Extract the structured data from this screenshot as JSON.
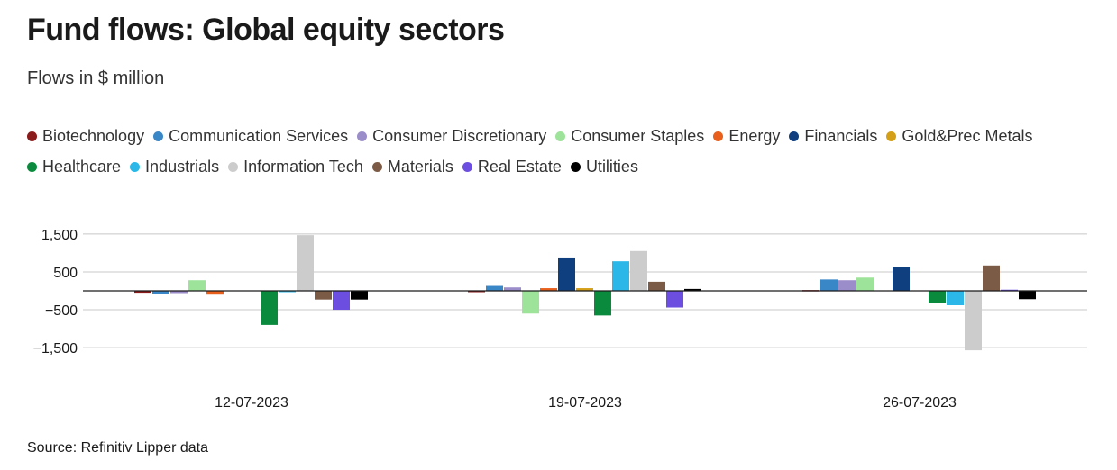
{
  "title": "Fund flows: Global equity sectors",
  "subtitle": "Flows in $ million",
  "source": "Source: Refinitiv Lipper data",
  "chart_data": {
    "type": "bar",
    "categories": [
      "12-07-2023",
      "19-07-2023",
      "26-07-2023"
    ],
    "ylim": [
      -1900,
      1750
    ],
    "yticks": [
      1500,
      500,
      -500,
      -1500
    ],
    "ytick_labels": [
      "1,500",
      "500",
      "−500",
      "−1,500"
    ],
    "legend_placement": "top",
    "series": [
      {
        "name": "Biotechnology",
        "color": "#8b1a1a",
        "values": [
          -50,
          -30,
          20
        ]
      },
      {
        "name": "Communication Services",
        "color": "#3a87c8",
        "values": [
          -90,
          130,
          300
        ]
      },
      {
        "name": "Consumer Discretionary",
        "color": "#9b8dc9",
        "values": [
          -60,
          90,
          280
        ]
      },
      {
        "name": "Consumer Staples",
        "color": "#9ee39a",
        "values": [
          280,
          -600,
          350
        ]
      },
      {
        "name": "Energy",
        "color": "#e8601c",
        "values": [
          -100,
          70,
          0
        ]
      },
      {
        "name": "Financials",
        "color": "#0f3f7f",
        "values": [
          0,
          880,
          620
        ]
      },
      {
        "name": "Gold&Prec Metals",
        "color": "#d4a017",
        "values": [
          0,
          70,
          0
        ]
      },
      {
        "name": "Healthcare",
        "color": "#0a8a3c",
        "values": [
          -900,
          -650,
          -330
        ]
      },
      {
        "name": "Industrials",
        "color": "#2bb8e8",
        "values": [
          -30,
          780,
          -380
        ]
      },
      {
        "name": "Information Tech",
        "color": "#cccccc",
        "values": [
          1470,
          1050,
          -1570
        ]
      },
      {
        "name": "Materials",
        "color": "#7b5b45",
        "values": [
          -230,
          240,
          670
        ]
      },
      {
        "name": "Real Estate",
        "color": "#6c4fe0",
        "values": [
          -500,
          -440,
          30
        ]
      },
      {
        "name": "Utilities",
        "color": "#000000",
        "values": [
          -230,
          50,
          -220
        ]
      }
    ]
  }
}
